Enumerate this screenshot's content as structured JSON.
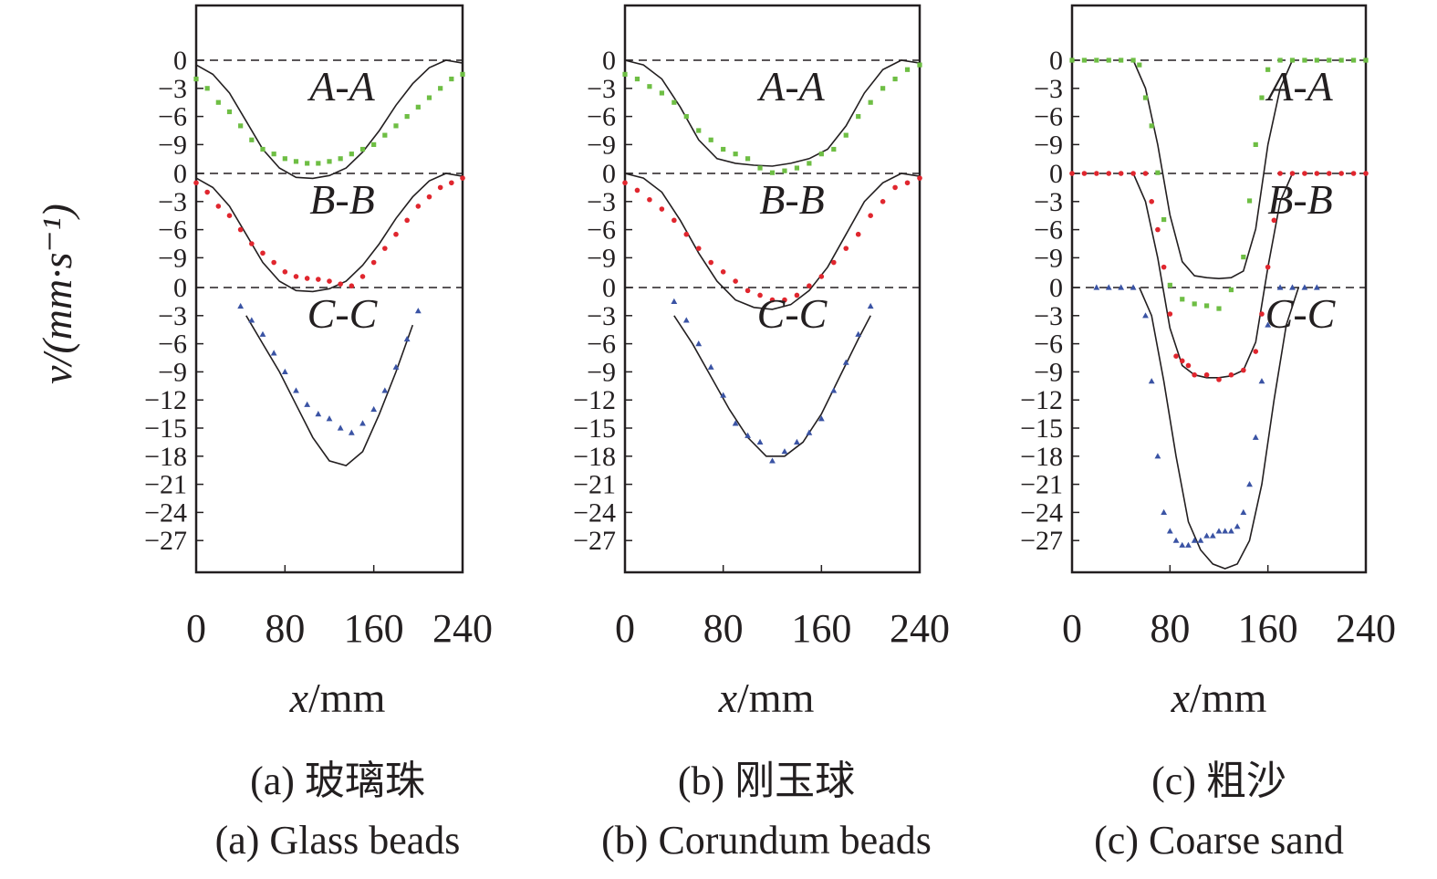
{
  "ylabel": "v/(mm·s⁻¹)",
  "xlabel_var": "x",
  "xlabel_unit": "/mm",
  "colors": {
    "A-A": "#6ebe44",
    "B-B": "#e0262e",
    "C-C": "#3a53a4",
    "line": "#231f20"
  },
  "chart_data": [
    {
      "type": "line",
      "panel": "a",
      "caption_cn": "(a) 玻璃珠",
      "caption_en": "(a) Glass beads",
      "xlabel": "x/mm",
      "ylabel": "v/(mm·s⁻¹)",
      "xticks": [
        0,
        80,
        160,
        240
      ],
      "xlim": [
        0,
        240
      ],
      "section_labels": [
        "A-A",
        "B-B",
        "C-C"
      ],
      "grid": false,
      "sections": [
        {
          "name": "A-A",
          "simulated": {
            "x": [
              0,
              15,
              30,
              45,
              60,
              75,
              90,
              105,
              120,
              135,
              150,
              165,
              180,
              195,
              210,
              225,
              240
            ],
            "v": [
              -0.5,
              -1.5,
              -3.5,
              -6.5,
              -9.5,
              -11.5,
              -12.5,
              -12.6,
              -12.3,
              -11.5,
              -9.8,
              -7.5,
              -4.8,
              -2.5,
              -0.8,
              0,
              -0.3
            ]
          },
          "measured": {
            "x": [
              0,
              10,
              20,
              30,
              40,
              50,
              60,
              70,
              80,
              90,
              100,
              110,
              120,
              130,
              140,
              150,
              160,
              170,
              180,
              190,
              200,
              210,
              220,
              230,
              240
            ],
            "v": [
              -2,
              -3,
              -4.5,
              -5.5,
              -7,
              -8.5,
              -9.5,
              -10,
              -10.5,
              -10.8,
              -11,
              -11,
              -10.8,
              -10.5,
              -10,
              -9.5,
              -9,
              -8,
              -7,
              -6,
              -5,
              -4,
              -3,
              -2,
              -1.5
            ]
          },
          "marker": "square"
        },
        {
          "name": "B-B",
          "simulated": {
            "x": [
              0,
              15,
              30,
              45,
              60,
              75,
              90,
              105,
              120,
              135,
              150,
              165,
              180,
              195,
              210,
              225,
              240
            ],
            "v": [
              -0.5,
              -1.5,
              -3.5,
              -6.5,
              -9.5,
              -11.5,
              -12.5,
              -12.6,
              -12.3,
              -11.5,
              -9.8,
              -7.5,
              -4.8,
              -2.5,
              -0.8,
              0,
              -0.3
            ]
          },
          "measured": {
            "x": [
              0,
              10,
              20,
              30,
              40,
              50,
              60,
              70,
              80,
              90,
              100,
              110,
              120,
              130,
              140,
              150,
              160,
              170,
              180,
              190,
              200,
              210,
              220,
              230,
              240
            ],
            "v": [
              -1,
              -2,
              -3.5,
              -4.5,
              -6,
              -7.5,
              -8.5,
              -9.5,
              -10.5,
              -11,
              -11.2,
              -11.3,
              -11.5,
              -11.8,
              -12,
              -11,
              -9.5,
              -8,
              -6.5,
              -5,
              -3.5,
              -2.5,
              -1.5,
              -1,
              -0.5
            ]
          },
          "marker": "circle"
        },
        {
          "name": "C-C",
          "simulated": {
            "x": [
              45,
              60,
              75,
              90,
              105,
              120,
              135,
              150,
              165,
              180,
              195
            ],
            "v": [
              -3,
              -6,
              -9,
              -12.5,
              -16,
              -18.5,
              -19,
              -17.5,
              -13.5,
              -9,
              -4
            ]
          },
          "measured": {
            "x": [
              40,
              50,
              60,
              70,
              80,
              90,
              100,
              110,
              120,
              130,
              140,
              150,
              160,
              170,
              180,
              190,
              200
            ],
            "v": [
              -2,
              -3.5,
              -5,
              -7,
              -9,
              -11,
              -12.5,
              -13.5,
              -14,
              -15,
              -15.5,
              -14.5,
              -13,
              -11,
              -8.5,
              -5.5,
              -2.5
            ]
          },
          "marker": "triangle"
        }
      ]
    },
    {
      "type": "line",
      "panel": "b",
      "caption_cn": "(b) 刚玉球",
      "caption_en": "(b) Corundum beads",
      "xlabel": "x/mm",
      "ylabel": "v/(mm·s⁻¹)",
      "xticks": [
        0,
        80,
        160,
        240
      ],
      "xlim": [
        0,
        240
      ],
      "section_labels": [
        "A-A",
        "B-B",
        "C-C"
      ],
      "grid": false,
      "sections": [
        {
          "name": "A-A",
          "simulated": {
            "x": [
              0,
              15,
              30,
              45,
              60,
              75,
              90,
              105,
              120,
              135,
              150,
              165,
              180,
              195,
              210,
              225,
              240
            ],
            "v": [
              0,
              -0.5,
              -2,
              -5,
              -8.5,
              -10.5,
              -11,
              -11.2,
              -11.3,
              -11,
              -10.5,
              -9.5,
              -7,
              -3.5,
              -1,
              0,
              -0.3
            ]
          },
          "measured": {
            "x": [
              0,
              10,
              20,
              30,
              40,
              50,
              60,
              70,
              80,
              90,
              100,
              110,
              120,
              130,
              140,
              150,
              160,
              170,
              180,
              190,
              200,
              210,
              220,
              230,
              240
            ],
            "v": [
              -1.5,
              -2,
              -2.8,
              -3.5,
              -4.5,
              -6,
              -7.5,
              -8.5,
              -9.5,
              -10,
              -10.5,
              -11.5,
              -12,
              -11.8,
              -11.5,
              -11,
              -10,
              -9.5,
              -8,
              -6,
              -4.5,
              -3,
              -2,
              -1,
              -0.5
            ]
          },
          "marker": "square"
        },
        {
          "name": "B-B",
          "simulated": {
            "x": [
              0,
              15,
              30,
              45,
              60,
              75,
              90,
              105,
              120,
              135,
              150,
              165,
              180,
              195,
              210,
              225,
              240
            ],
            "v": [
              0,
              -0.5,
              -2,
              -5,
              -8.5,
              -11.5,
              -13.5,
              -14.3,
              -14.5,
              -14,
              -12.5,
              -10,
              -6.5,
              -3,
              -1,
              0,
              -0.3
            ]
          },
          "measured": {
            "x": [
              0,
              10,
              20,
              30,
              40,
              50,
              60,
              70,
              80,
              90,
              100,
              110,
              120,
              130,
              140,
              150,
              160,
              170,
              180,
              190,
              200,
              210,
              220,
              230,
              240
            ],
            "v": [
              -1,
              -1.8,
              -2.8,
              -3.8,
              -5,
              -6.5,
              -8,
              -9.5,
              -10.5,
              -11.5,
              -12.5,
              -13,
              -13.5,
              -13.5,
              -13,
              -12,
              -11,
              -9.5,
              -8,
              -6.5,
              -4.5,
              -3,
              -1.5,
              -1,
              -0.5
            ]
          },
          "marker": "circle"
        },
        {
          "name": "C-C",
          "simulated": {
            "x": [
              40,
              55,
              70,
              85,
              100,
              115,
              130,
              145,
              160,
              175,
              190,
              200
            ],
            "v": [
              -3,
              -6,
              -9.5,
              -13,
              -16,
              -18,
              -18,
              -16.5,
              -13.5,
              -9.5,
              -5.5,
              -3
            ]
          },
          "measured": {
            "x": [
              40,
              50,
              60,
              70,
              80,
              90,
              100,
              110,
              120,
              130,
              140,
              150,
              160,
              170,
              180,
              190,
              200
            ],
            "v": [
              -1.5,
              -3.5,
              -6,
              -8.5,
              -11.5,
              -14.5,
              -15.8,
              -16.5,
              -18.5,
              -17.5,
              -16.5,
              -15.5,
              -14,
              -11,
              -8,
              -5,
              -2
            ]
          },
          "marker": "triangle"
        }
      ]
    },
    {
      "type": "line",
      "panel": "c",
      "caption_cn": "(c) 粗沙",
      "caption_en": "(c) Coarse sand",
      "xlabel": "x/mm",
      "ylabel": "v/(mm·s⁻¹)",
      "xticks": [
        0,
        80,
        160,
        240
      ],
      "xlim": [
        0,
        240
      ],
      "section_labels": [
        "A-A",
        "B-B",
        "C-C"
      ],
      "grid": false,
      "sections": [
        {
          "name": "A-A",
          "simulated": {
            "x": [
              50,
              60,
              70,
              80,
              90,
              100,
              110,
              120,
              130,
              140,
              150,
              160,
              170,
              180
            ],
            "v": [
              0,
              -3,
              -9,
              -16.5,
              -21.5,
              -23,
              -23.2,
              -23.3,
              -23.2,
              -22.5,
              -18,
              -9,
              -3,
              0
            ]
          },
          "measured": {
            "x": [
              0,
              10,
              20,
              30,
              40,
              50,
              55,
              60,
              65,
              70,
              75,
              80,
              90,
              100,
              110,
              120,
              130,
              140,
              145,
              150,
              155,
              160,
              170,
              180,
              190,
              200,
              210,
              220,
              230,
              240
            ],
            "v": [
              0,
              0,
              0,
              0,
              0,
              0,
              -0.5,
              -4,
              -7,
              -12,
              -17,
              -24,
              -25.5,
              -26,
              -26.2,
              -26.5,
              -24.5,
              -21,
              -15,
              -9,
              -4,
              -1,
              0,
              0,
              0,
              0,
              0,
              0,
              0,
              0
            ]
          },
          "marker": "square"
        },
        {
          "name": "B-B",
          "simulated": {
            "x": [
              50,
              60,
              70,
              80,
              90,
              100,
              110,
              120,
              130,
              140,
              150,
              160,
              170,
              180
            ],
            "v": [
              0,
              -3,
              -9,
              -16.5,
              -20.5,
              -21.5,
              -21.8,
              -21.8,
              -21.6,
              -21,
              -18,
              -10,
              -3,
              0
            ]
          },
          "measured": {
            "x": [
              0,
              10,
              20,
              30,
              40,
              50,
              60,
              65,
              70,
              75,
              80,
              85,
              90,
              95,
              100,
              110,
              120,
              130,
              140,
              150,
              155,
              160,
              165,
              170,
              180,
              190,
              200,
              210,
              220,
              230,
              240
            ],
            "v": [
              0,
              0,
              0,
              0,
              0,
              0,
              0,
              -3,
              -6,
              -10,
              -15,
              -19.5,
              -20,
              -20.5,
              -21.5,
              -21.5,
              -22,
              -21.5,
              -21,
              -19,
              -15,
              -10,
              -5,
              0,
              0,
              0,
              0,
              0,
              0,
              0,
              0
            ]
          },
          "marker": "circle"
        },
        {
          "name": "C-C",
          "simulated": {
            "x": [
              55,
              65,
              75,
              85,
              95,
              105,
              115,
              125,
              135,
              145,
              155,
              165,
              175,
              185
            ],
            "v": [
              0,
              -3,
              -10,
              -18,
              -25,
              -28,
              -29.5,
              -30,
              -29.5,
              -27,
              -21,
              -12,
              -4,
              0
            ]
          },
          "measured": {
            "x": [
              20,
              30,
              40,
              50,
              60,
              65,
              70,
              75,
              80,
              85,
              90,
              95,
              100,
              105,
              110,
              115,
              120,
              125,
              130,
              135,
              140,
              145,
              150,
              155,
              160,
              170,
              180,
              190,
              200
            ],
            "v": [
              0,
              0,
              0,
              0,
              -3,
              -10,
              -18,
              -24,
              -26,
              -27,
              -27.5,
              -27.5,
              -27,
              -27,
              -26.5,
              -26.5,
              -26,
              -26,
              -26,
              -25.5,
              -24,
              -21,
              -16,
              -10,
              -4,
              0,
              0,
              0,
              0
            ]
          },
          "marker": "triangle"
        }
      ]
    }
  ]
}
